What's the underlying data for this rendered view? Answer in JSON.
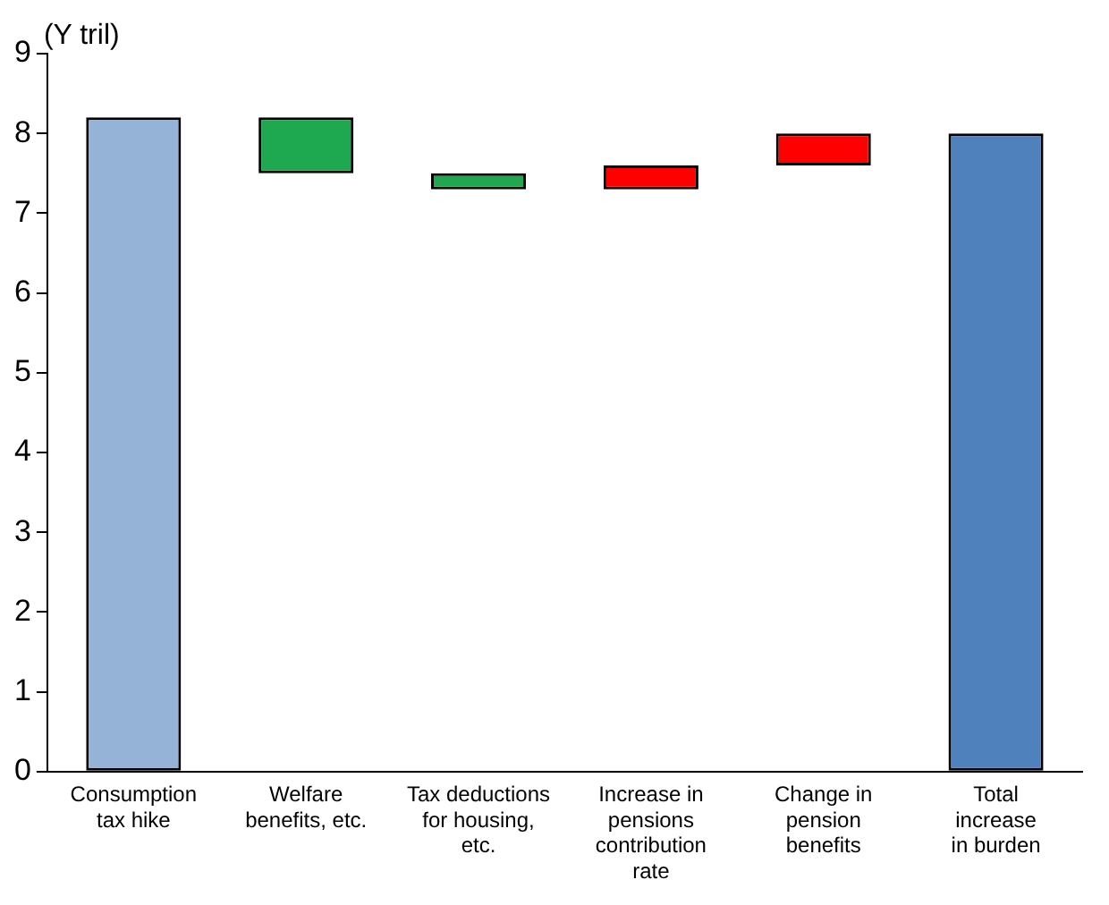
{
  "chart_data": {
    "type": "bar",
    "ylabel": "(Y tril)",
    "categories": [
      "Consumption\ntax hike",
      "Welfare\nbenefits, etc.",
      "Tax deductions\nfor housing,\netc.",
      "Increase in\npensions\ncontribution\nrate",
      "Change in\npension\nbenefits",
      "Total\nincrease\nin burden"
    ],
    "values": [
      8.2,
      -0.7,
      -0.2,
      0.3,
      0.4,
      8.0
    ],
    "base": [
      0,
      8.2,
      7.5,
      7.3,
      7.6,
      0
    ],
    "colors": [
      "#95b3d7",
      "#1ea84f",
      "#1ea84f",
      "#ff0000",
      "#ff0000",
      "#4f81bd"
    ],
    "ylim": [
      0,
      9
    ],
    "yticks": [
      0,
      1,
      2,
      3,
      4,
      5,
      6,
      7,
      8,
      9
    ],
    "grid": false,
    "legend": false
  }
}
